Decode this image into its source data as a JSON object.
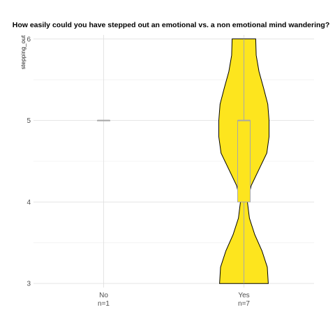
{
  "chart_data": {
    "type": "violin",
    "title": "How easily could you have stepped out an emotional vs. a non emotional mind wandering?",
    "xlabel": "",
    "ylabel": "stepping_out",
    "ylim": [
      2.95,
      6.05
    ],
    "y_ticks": [
      3,
      4,
      5,
      6
    ],
    "grid": true,
    "legend": "none",
    "categories": [
      {
        "name": "No",
        "n_label": "n=1",
        "n": 1,
        "violin": null,
        "box": {
          "min": 5,
          "q1": 5,
          "median": 5,
          "q3": 5,
          "max": 5
        }
      },
      {
        "name": "Yes",
        "n_label": "n=7",
        "n": 7,
        "violin": {
          "y": [
            3.0,
            3.2,
            3.4,
            3.6,
            3.8,
            4.0,
            4.2,
            4.4,
            4.6,
            4.8,
            5.0,
            5.2,
            5.4,
            5.6,
            5.8,
            6.0
          ],
          "density": [
            0.97,
            0.93,
            0.72,
            0.43,
            0.22,
            0.14,
            0.29,
            0.6,
            0.91,
            1.0,
            1.0,
            0.95,
            0.78,
            0.6,
            0.49,
            0.47
          ]
        },
        "box": {
          "min": 3,
          "q1": 4,
          "median": 5,
          "q3": 5,
          "max": 6
        }
      }
    ],
    "colors": {
      "violin_fill": "#FDE51E",
      "violin_stroke": "#000000",
      "box_stroke": "#A8A8A8",
      "box_fill": "#FDE51E"
    }
  }
}
